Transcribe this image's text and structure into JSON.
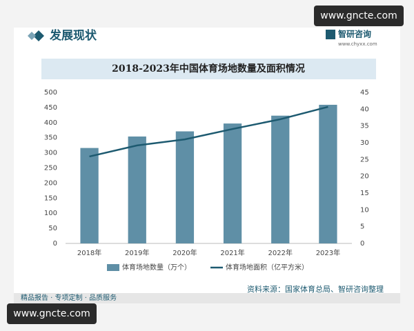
{
  "page": {
    "watermark_top": "www.gncte.com",
    "section_title": "发展现状",
    "brand": "智研咨询",
    "brand_url": "www.chyxx.com",
    "source": "资料来源：国家体育总局、智研咨询整理",
    "footer": "精品报告 · 专项定制 · 品质服务",
    "watermark_bottom": "www.gncte.com"
  },
  "chart_data": {
    "type": "bar",
    "title": "2018-2023年中国体育场地数量及面积情况",
    "categories": [
      "2018年",
      "2019年",
      "2020年",
      "2021年",
      "2022年",
      "2023年"
    ],
    "series": [
      {
        "name": "体育场地数量（万个）",
        "type": "bar",
        "color": "#5f8fa6",
        "values": [
          316,
          354,
          371,
          397,
          423,
          459
        ]
      },
      {
        "name": "体育场地面积（亿平方米）",
        "type": "line",
        "axis": "y2",
        "color": "#1d5a70",
        "values": [
          25.9,
          29.2,
          31.0,
          34.1,
          37.0,
          40.7
        ]
      }
    ],
    "ylim": [
      0,
      500
    ],
    "yticks": [
      0,
      50,
      100,
      150,
      200,
      250,
      300,
      350,
      400,
      450,
      500
    ],
    "y2lim": [
      0,
      45
    ],
    "y2ticks": [
      0,
      5,
      10,
      15,
      20,
      25,
      30,
      35,
      40,
      45
    ],
    "legend": "bottom"
  }
}
